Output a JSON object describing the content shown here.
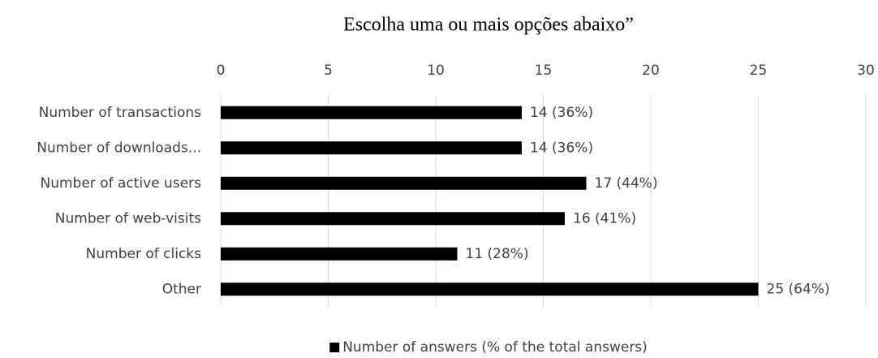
{
  "chart_data": {
    "type": "bar",
    "orientation": "horizontal",
    "title": "Escolha uma ou mais opções abaixo”",
    "categories": [
      "Number of transactions",
      "Number of downloads...",
      "Number of active users",
      "Number of web-visits",
      "Number of clicks",
      "Other"
    ],
    "series": [
      {
        "name": "Number of answers (% of the total answers)",
        "color": "#000000",
        "values": [
          14,
          14,
          17,
          16,
          11,
          25
        ],
        "value_labels": [
          "14 (36%)",
          "14 (36%)",
          "17 (44%)",
          "16 (41%)",
          "11 (28%)",
          "25 (64%)"
        ]
      }
    ],
    "xlim": [
      0,
      30
    ],
    "xticks": [
      0,
      5,
      10,
      15,
      20,
      25,
      30
    ],
    "grid": true,
    "legend": "bottom"
  }
}
